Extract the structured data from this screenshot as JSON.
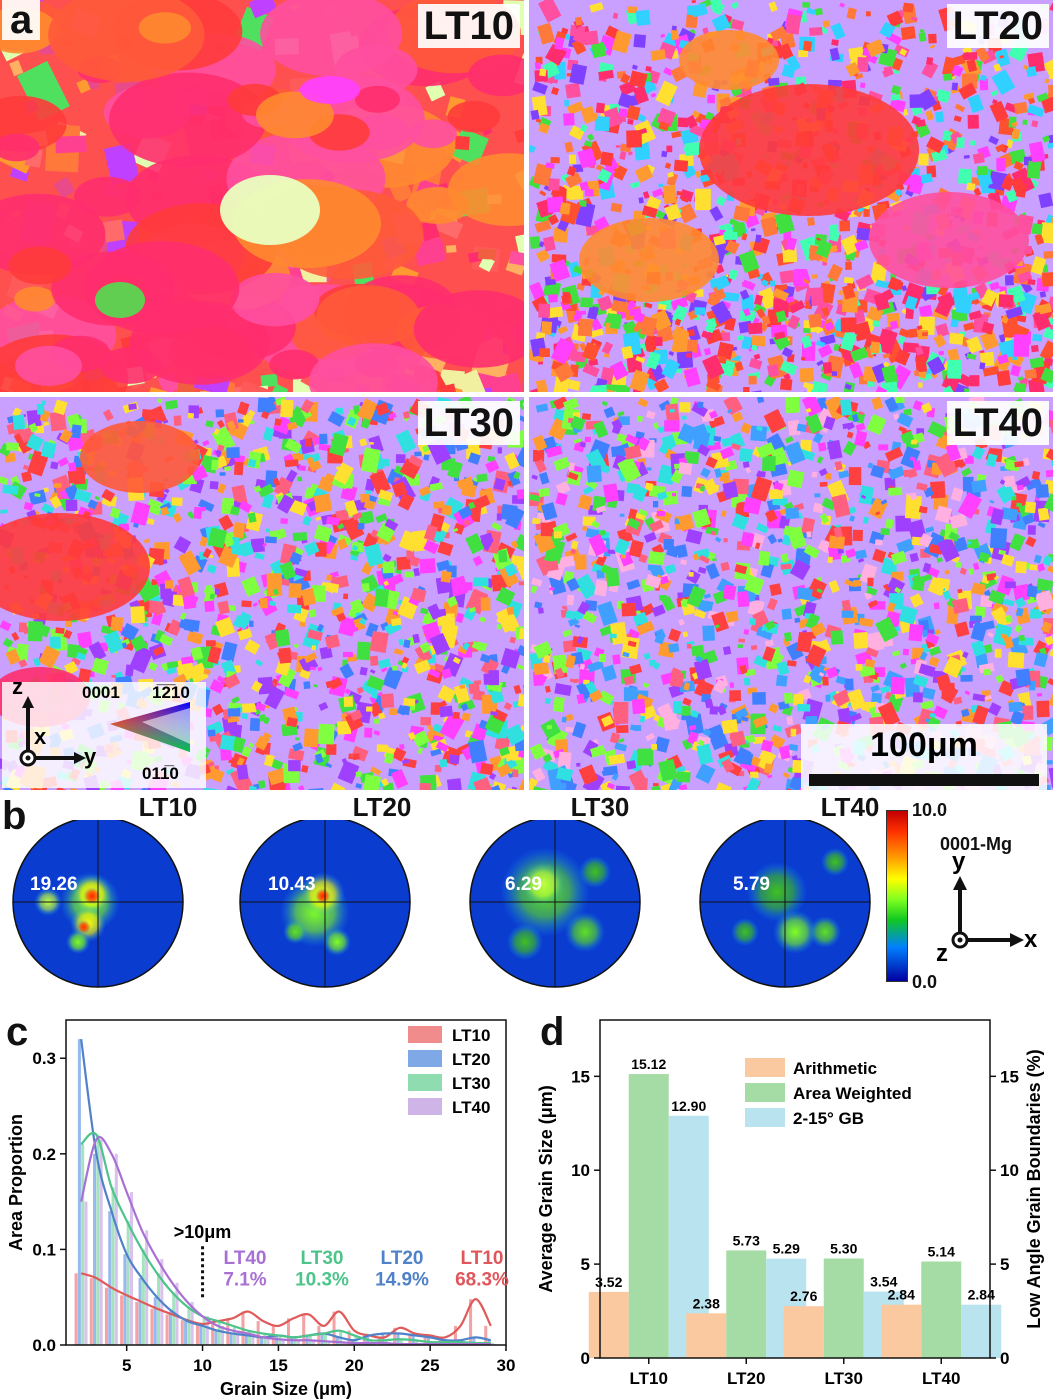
{
  "panel_a": {
    "letter": "a",
    "maps": [
      {
        "label": "LT10"
      },
      {
        "label": "LT20"
      },
      {
        "label": "LT30"
      },
      {
        "label": "LT40"
      }
    ],
    "ipf_legend": {
      "label_left": "0001",
      "label_right": "1̅2̅10",
      "label_bottom": "011̅0",
      "axis_z": "z",
      "axis_x": "x",
      "axis_y": "y"
    },
    "scale_bar": {
      "label": "100μm"
    }
  },
  "panel_b": {
    "letter": "b",
    "pole_figures": [
      {
        "title": "LT10",
        "max": "19.26"
      },
      {
        "title": "LT20",
        "max": "10.43"
      },
      {
        "title": "LT30",
        "max": "6.29"
      },
      {
        "title": "LT40",
        "max": "5.79"
      }
    ],
    "colorbar": {
      "max_label": "10.0",
      "min_label": "0.0",
      "plane": "0001-Mg"
    },
    "axes": {
      "y": "y",
      "z": "z",
      "x": "x"
    }
  },
  "panel_c": {
    "letter": "c",
    "annotation": ">10μm",
    "legend": [
      {
        "name": "LT10",
        "color": "#f08c8c"
      },
      {
        "name": "LT20",
        "color": "#7ea8e6"
      },
      {
        "name": "LT30",
        "color": "#8fdcb0"
      },
      {
        "name": "LT40",
        "color": "#cfb4e8"
      }
    ],
    "fractions": [
      {
        "name": "LT40",
        "value": "7.1%",
        "color": "#a970d4"
      },
      {
        "name": "LT30",
        "value": "10.3%",
        "color": "#4cc48a"
      },
      {
        "name": "LT20",
        "value": "14.9%",
        "color": "#4f82c8"
      },
      {
        "name": "LT10",
        "value": "68.3%",
        "color": "#e0565a"
      }
    ]
  },
  "panel_d": {
    "letter": "d"
  },
  "chart_data": [
    {
      "type": "bar",
      "title": "",
      "xlabel": "Grain Size (μm)",
      "ylabel": "Area Proportion",
      "xlim": [
        1,
        30
      ],
      "ylim": [
        0,
        0.34
      ],
      "xticks": [
        "5",
        "10",
        "15",
        "20",
        "25",
        "30"
      ],
      "yticks": [
        "0.0",
        "0.1",
        "0.2",
        "0.3"
      ],
      "x": [
        2,
        3,
        4,
        5,
        6,
        7,
        8,
        9,
        10,
        11,
        12,
        13,
        14,
        15,
        16,
        17,
        18,
        19,
        20,
        21,
        22,
        23,
        24,
        25,
        26,
        27,
        28,
        29
      ],
      "series": [
        {
          "name": "LT10",
          "color": "#f08c8c",
          "line_color": "#e05a5a",
          "values": [
            0.075,
            0.07,
            0.06,
            0.052,
            0.045,
            0.038,
            0.032,
            0.026,
            0.022,
            0.025,
            0.028,
            0.035,
            0.025,
            0.02,
            0.028,
            0.032,
            0.02,
            0.035,
            0.015,
            0.01,
            0.008,
            0.018,
            0.012,
            0.01,
            0.008,
            0.02,
            0.048,
            0.02
          ]
        },
        {
          "name": "LT20",
          "color": "#7ea8e6",
          "line_color": "#4f82c8",
          "values": [
            0.32,
            0.2,
            0.14,
            0.095,
            0.07,
            0.05,
            0.035,
            0.025,
            0.02,
            0.015,
            0.012,
            0.01,
            0.008,
            0.01,
            0.008,
            0.01,
            0.012,
            0.008,
            0.005,
            0.01,
            0.012,
            0.012,
            0.01,
            0.008,
            0.005,
            0.005,
            0.008,
            0.005
          ]
        },
        {
          "name": "LT30",
          "color": "#8fdcb0",
          "line_color": "#4cc48a",
          "values": [
            0.21,
            0.22,
            0.165,
            0.13,
            0.1,
            0.075,
            0.055,
            0.04,
            0.03,
            0.025,
            0.02,
            0.015,
            0.012,
            0.01,
            0.008,
            0.01,
            0.012,
            0.015,
            0.01,
            0.005,
            0.005,
            0.006,
            0.005,
            0.003,
            0.003,
            0.003,
            0.002,
            0.002
          ]
        },
        {
          "name": "LT40",
          "color": "#cfb4e8",
          "line_color": "#a970d4",
          "values": [
            0.15,
            0.215,
            0.2,
            0.16,
            0.12,
            0.09,
            0.065,
            0.045,
            0.03,
            0.02,
            0.015,
            0.012,
            0.008,
            0.006,
            0.005,
            0.005,
            0.004,
            0.003,
            0.002,
            0.002,
            0.002,
            0.001,
            0.001,
            0.001,
            0.001,
            0.001,
            0.001,
            0.001
          ]
        }
      ]
    },
    {
      "type": "bar",
      "title": "",
      "xlabel": "",
      "ylabel": "Average Grain Size (μm)",
      "ylabel_right": "Low Angle Grain Boundaries (%)",
      "ylim": [
        0,
        18
      ],
      "ylim_right": [
        0,
        18
      ],
      "yticks": [
        "0",
        "5",
        "10",
        "15"
      ],
      "categories": [
        "LT10",
        "LT20",
        "LT30",
        "LT40"
      ],
      "series": [
        {
          "name": "Arithmetic",
          "color": "#fbc9a0",
          "values": [
            3.52,
            2.38,
            2.76,
            2.84
          ],
          "labels": [
            "3.52",
            "2.38",
            "2.76",
            "2.84"
          ]
        },
        {
          "name": "Area Weighted",
          "color": "#a5dca5",
          "values": [
            15.12,
            5.73,
            5.3,
            5.14
          ],
          "labels": [
            "15.12",
            "5.73",
            "5.30",
            "5.14"
          ]
        },
        {
          "name": "2-15° GB",
          "color": "#b9e3ee",
          "values": [
            12.9,
            5.29,
            3.54,
            2.84
          ],
          "labels": [
            "12.90",
            "5.29",
            "3.54",
            "2.84"
          ],
          "axis": "right"
        }
      ]
    }
  ]
}
